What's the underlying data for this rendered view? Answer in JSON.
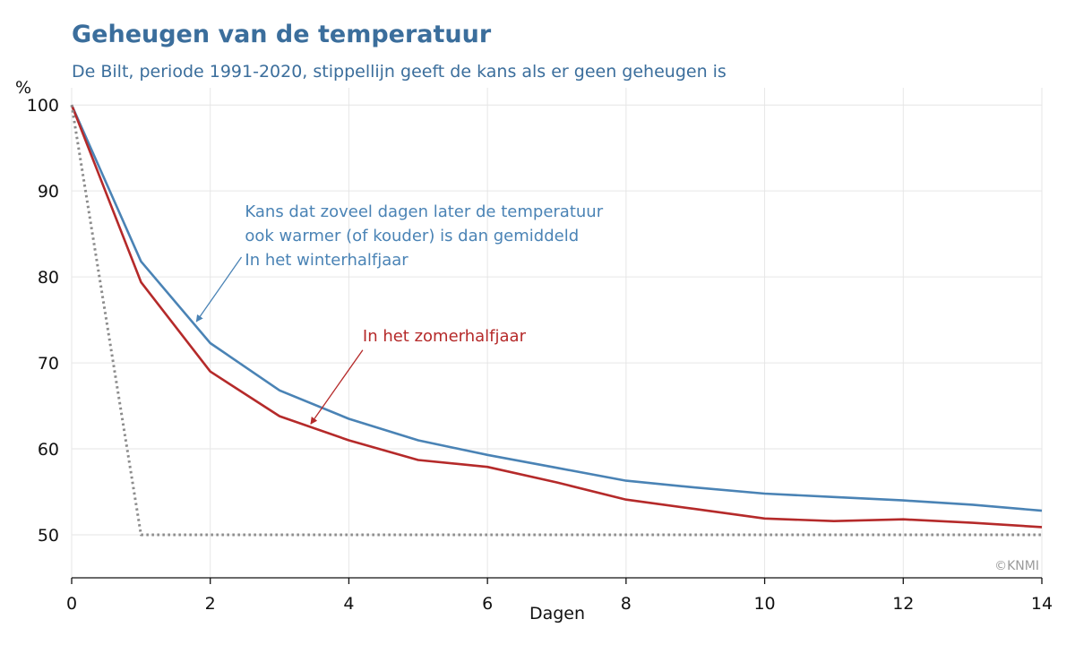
{
  "chart_data": {
    "type": "line",
    "title": "Geheugen van de temperatuur",
    "subtitle": "De Bilt, periode 1991-2020, stippellijn geeft de kans als er geen geheugen is",
    "xlabel": "Dagen",
    "ylabel": "%",
    "xlim": [
      0,
      14
    ],
    "ylim": [
      45,
      102
    ],
    "x_ticks": [
      0,
      2,
      4,
      6,
      8,
      10,
      12,
      14
    ],
    "y_ticks": [
      50,
      60,
      70,
      80,
      90,
      100
    ],
    "grid": true,
    "x": [
      0,
      1,
      2,
      3,
      4,
      5,
      6,
      7,
      8,
      9,
      10,
      11,
      12,
      13,
      14
    ],
    "series": [
      {
        "name": "In het winterhalfjaar",
        "color": "#4a83b5",
        "style": "solid",
        "values": [
          100,
          81.8,
          72.3,
          66.8,
          63.5,
          61.0,
          59.3,
          57.8,
          56.3,
          55.5,
          54.8,
          54.4,
          54.0,
          53.5,
          52.8
        ]
      },
      {
        "name": "In het zomerhalfjaar",
        "color": "#b52a2a",
        "style": "solid",
        "values": [
          100,
          79.4,
          69.0,
          63.8,
          61.0,
          58.7,
          57.9,
          56.1,
          54.1,
          53.0,
          51.9,
          51.6,
          51.8,
          51.4,
          50.9
        ]
      },
      {
        "name": "",
        "color": "#8c8c8c",
        "style": "dotted",
        "values": [
          100,
          50,
          50,
          50,
          50,
          50,
          50,
          50,
          50,
          50,
          50,
          50,
          50,
          50,
          50
        ]
      }
    ],
    "annotations": [
      {
        "id": "winter",
        "color": "#4a83b5",
        "lines": [
          "Kans dat zoveel dagen later de temperatuur",
          "ook warmer (of kouder) is dan gemiddeld",
          "In het winterhalfjaar"
        ],
        "text_at": [
          2.5,
          87.0
        ],
        "arrow_from": [
          2.45,
          82.3
        ],
        "arrow_to": [
          1.8,
          74.8
        ]
      },
      {
        "id": "zomer",
        "color": "#b52a2a",
        "lines": [
          "In het zomerhalfjaar"
        ],
        "text_at": [
          4.2,
          72.5
        ],
        "arrow_from": [
          4.2,
          71.5
        ],
        "arrow_to": [
          3.45,
          62.9
        ]
      }
    ],
    "credit": "©KNMI"
  }
}
